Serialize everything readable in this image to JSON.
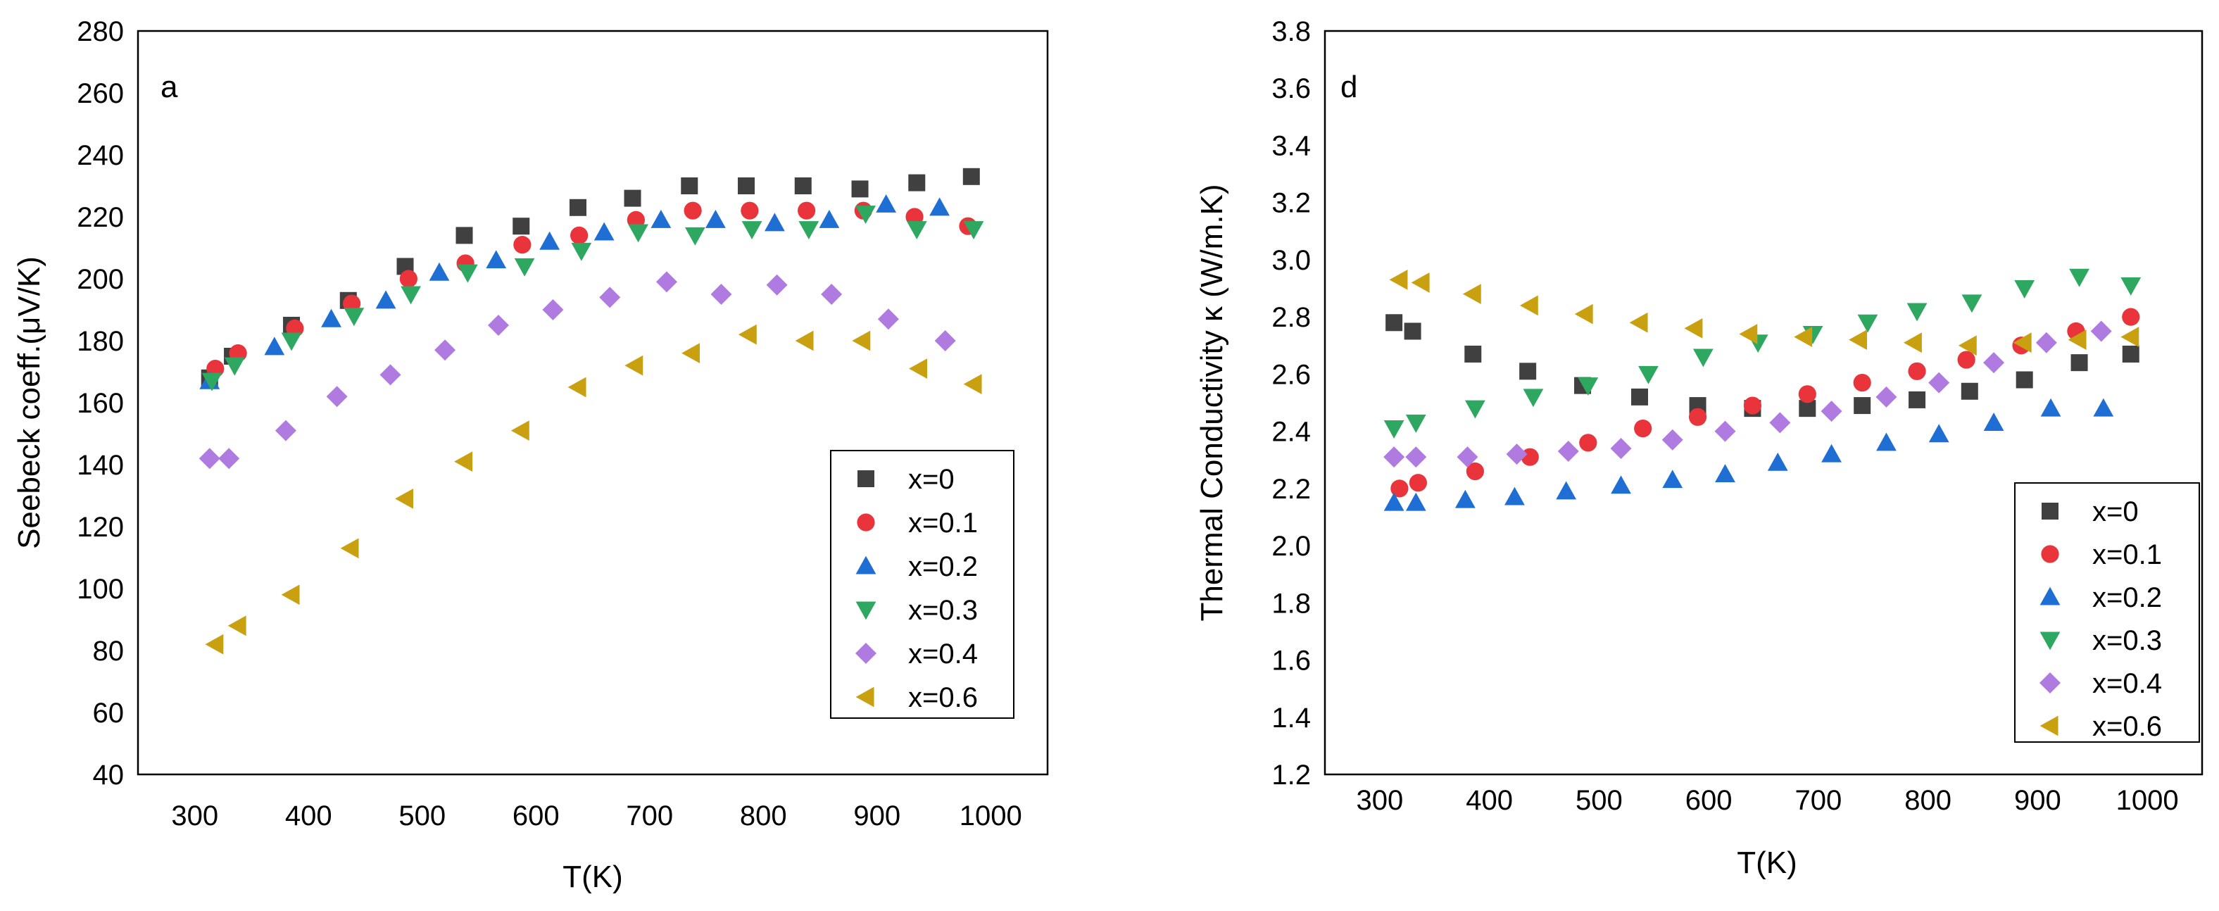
{
  "chart_data": [
    {
      "type": "scatter",
      "panel_label": "a",
      "xlabel": "T(K)",
      "ylabel": "Seebeck coeff.(μV/K)",
      "xlim": [
        250,
        1050
      ],
      "ylim": [
        40,
        280
      ],
      "xticks": [
        300,
        400,
        500,
        600,
        700,
        800,
        900,
        1000
      ],
      "yticks": [
        40,
        60,
        80,
        100,
        120,
        140,
        160,
        180,
        200,
        220,
        240,
        260,
        280
      ],
      "legend_position": "lower-right",
      "series": [
        {
          "name": "x=0",
          "marker": "square",
          "color": "#404040",
          "x": [
            313,
            333,
            385,
            435,
            485,
            537,
            587,
            637,
            685,
            735,
            785,
            835,
            885,
            935,
            983
          ],
          "y": [
            168,
            175,
            185,
            193,
            204,
            214,
            217,
            223,
            226,
            230,
            230,
            230,
            229,
            231,
            233
          ]
        },
        {
          "name": "x=0.1",
          "marker": "circle",
          "color": "#e8343a",
          "x": [
            318,
            338,
            388,
            438,
            488,
            538,
            588,
            638,
            688,
            738,
            788,
            838,
            888,
            933,
            980
          ],
          "y": [
            171,
            176,
            184,
            192,
            200,
            205,
            211,
            214,
            219,
            222,
            222,
            222,
            222,
            220,
            217
          ]
        },
        {
          "name": "x=0.2",
          "marker": "triangle-up",
          "color": "#1f6ed4",
          "x": [
            313,
            370,
            420,
            468,
            515,
            565,
            612,
            660,
            710,
            758,
            810,
            858,
            908,
            955
          ],
          "y": [
            167,
            178,
            187,
            193,
            202,
            206,
            212,
            215,
            219,
            219,
            218,
            219,
            224,
            223
          ]
        },
        {
          "name": "x=0.3",
          "marker": "triangle-down",
          "color": "#2ea860",
          "x": [
            315,
            335,
            385,
            440,
            490,
            540,
            590,
            640,
            690,
            740,
            790,
            840,
            890,
            935,
            985
          ],
          "y": [
            167,
            172,
            180,
            188,
            195,
            202,
            204,
            209,
            215,
            214,
            216,
            216,
            221,
            216,
            216
          ]
        },
        {
          "name": "x=0.4",
          "marker": "diamond",
          "color": "#b07be0",
          "x": [
            313,
            330,
            380,
            425,
            472,
            520,
            567,
            615,
            665,
            715,
            763,
            812,
            860,
            910,
            960
          ],
          "y": [
            142,
            142,
            151,
            162,
            169,
            177,
            185,
            190,
            194,
            199,
            195,
            198,
            195,
            187,
            180
          ]
        },
        {
          "name": "x=0.6",
          "marker": "triangle-left",
          "color": "#c9a010",
          "x": [
            318,
            338,
            385,
            437,
            485,
            537,
            587,
            637,
            687,
            737,
            787,
            837,
            887,
            937,
            985
          ],
          "y": [
            82,
            88,
            98,
            113,
            129,
            141,
            151,
            165,
            172,
            176,
            182,
            180,
            180,
            171,
            166
          ]
        }
      ]
    },
    {
      "type": "scatter",
      "panel_label": "d",
      "xlabel": "T(K)",
      "ylabel": "Thermal Conductivity κ (W/m.K)",
      "xlim": [
        250,
        1050
      ],
      "ylim": [
        1.2,
        3.8
      ],
      "xticks": [
        300,
        400,
        500,
        600,
        700,
        800,
        900,
        1000
      ],
      "yticks": [
        1.2,
        1.4,
        1.6,
        1.8,
        2.0,
        2.2,
        2.4,
        2.6,
        2.8,
        3.0,
        3.2,
        3.4,
        3.6,
        3.8
      ],
      "yticklabels": [
        "1.2",
        "1.4",
        "1.6",
        "1.8",
        "2.0",
        "2.2",
        "2.4",
        "2.6",
        "2.8",
        "3.0",
        "3.2",
        "3.4",
        "3.6",
        "3.8"
      ],
      "legend_position": "lower-right",
      "series": [
        {
          "name": "x=0",
          "marker": "square",
          "color": "#404040",
          "x": [
            313,
            330,
            385,
            435,
            485,
            537,
            590,
            640,
            690,
            740,
            790,
            838,
            888,
            938,
            985
          ],
          "y": [
            2.78,
            2.75,
            2.67,
            2.61,
            2.56,
            2.52,
            2.49,
            2.48,
            2.48,
            2.49,
            2.51,
            2.54,
            2.58,
            2.64,
            2.67
          ]
        },
        {
          "name": "x=0.1",
          "marker": "circle",
          "color": "#e8343a",
          "x": [
            318,
            335,
            387,
            437,
            490,
            540,
            590,
            640,
            690,
            740,
            790,
            835,
            885,
            935,
            985
          ],
          "y": [
            2.2,
            2.22,
            2.26,
            2.31,
            2.36,
            2.41,
            2.45,
            2.49,
            2.53,
            2.57,
            2.61,
            2.65,
            2.7,
            2.75,
            2.8
          ]
        },
        {
          "name": "x=0.2",
          "marker": "triangle-up",
          "color": "#1f6ed4",
          "x": [
            313,
            333,
            378,
            423,
            470,
            520,
            567,
            615,
            663,
            712,
            762,
            810,
            860,
            912,
            960
          ],
          "y": [
            2.15,
            2.15,
            2.16,
            2.17,
            2.19,
            2.21,
            2.23,
            2.25,
            2.29,
            2.32,
            2.36,
            2.39,
            2.43,
            2.48,
            2.48
          ]
        },
        {
          "name": "x=0.3",
          "marker": "triangle-down",
          "color": "#2ea860",
          "x": [
            313,
            333,
            387,
            440,
            490,
            545,
            595,
            645,
            695,
            745,
            790,
            840,
            888,
            938,
            985
          ],
          "y": [
            2.41,
            2.43,
            2.48,
            2.52,
            2.56,
            2.6,
            2.66,
            2.71,
            2.74,
            2.78,
            2.82,
            2.85,
            2.9,
            2.94,
            2.91
          ]
        },
        {
          "name": "x=0.4",
          "marker": "diamond",
          "color": "#b07be0",
          "x": [
            313,
            333,
            380,
            425,
            472,
            520,
            567,
            615,
            665,
            712,
            762,
            810,
            860,
            908,
            958
          ],
          "y": [
            2.31,
            2.31,
            2.31,
            2.32,
            2.33,
            2.34,
            2.37,
            2.4,
            2.43,
            2.47,
            2.52,
            2.57,
            2.64,
            2.71,
            2.75
          ]
        },
        {
          "name": "x=0.6",
          "marker": "triangle-left",
          "color": "#c9a010",
          "x": [
            318,
            338,
            385,
            437,
            487,
            537,
            587,
            637,
            687,
            737,
            787,
            837,
            887,
            937,
            985
          ],
          "y": [
            2.93,
            2.92,
            2.88,
            2.84,
            2.81,
            2.78,
            2.76,
            2.74,
            2.73,
            2.72,
            2.71,
            2.7,
            2.71,
            2.72,
            2.73
          ]
        }
      ]
    }
  ]
}
